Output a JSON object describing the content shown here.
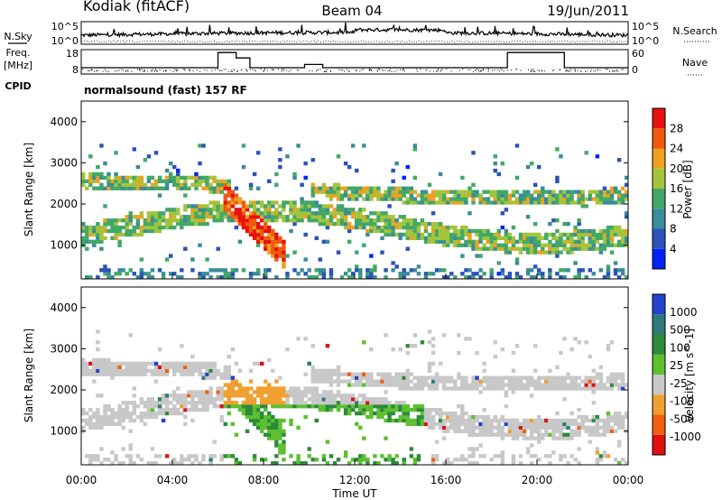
{
  "header": {
    "radar": "Kodiak (fitACF)",
    "beam": "Beam 04",
    "date": "19/Jun/2011"
  },
  "left_labels": {
    "nsky": "N.Sky",
    "freq": "Freq.",
    "freq_unit": "[MHz]",
    "cpid": "CPID"
  },
  "right_labels": {
    "nsearch": "N.Search",
    "nave": "Nave"
  },
  "cpid_text": "normalsound (fast) 157 RF",
  "chart_data": [
    {
      "type": "line",
      "name": "noise",
      "yticks_left": [
        "10^5",
        "10^0"
      ],
      "yticks_right": [
        "10^5",
        "10^0"
      ]
    },
    {
      "type": "line",
      "name": "frequency",
      "yticks_left": [
        "18",
        "8"
      ],
      "yticks_right": [
        "60",
        "0"
      ],
      "frequency_steps": [
        {
          "t0": 0.0,
          "t1": 6.0,
          "v": 10.5
        },
        {
          "t0": 6.0,
          "t1": 6.8,
          "v": 17.5
        },
        {
          "t0": 6.8,
          "t1": 7.4,
          "v": 15.0
        },
        {
          "t0": 7.4,
          "t1": 9.8,
          "v": 10.5
        },
        {
          "t0": 9.8,
          "t1": 10.6,
          "v": 12.0
        },
        {
          "t0": 10.6,
          "t1": 18.7,
          "v": 10.5
        },
        {
          "t0": 18.7,
          "t1": 21.2,
          "v": 17.5
        },
        {
          "t0": 21.2,
          "t1": 24.0,
          "v": 10.5
        }
      ]
    },
    {
      "type": "heatmap",
      "name": "power",
      "ylabel": "Slant Range [km]",
      "ylim": [
        180,
        4500
      ],
      "yticks": [
        "1000",
        "2000",
        "3000",
        "4000"
      ],
      "colorbar_label": "Power [dB]",
      "colorbar_ticks": [
        "28",
        "24",
        "20",
        "16",
        "12",
        "8",
        "4"
      ],
      "colors": [
        "#0022ff",
        "#2a52b8",
        "#3a8c9a",
        "#42a868",
        "#a4c43e",
        "#f0a020",
        "#f05a10",
        "#e81010"
      ]
    },
    {
      "type": "heatmap",
      "name": "velocity",
      "ylabel": "Slant Range [km]",
      "ylim": [
        180,
        4500
      ],
      "yticks": [
        "1000",
        "2000",
        "3000",
        "4000"
      ],
      "colorbar_label": "Velocity [m s^-1]",
      "colorbar_ticks": [
        "1000",
        "500",
        "100",
        "25",
        "-25",
        "-100",
        "-500",
        "-1000"
      ],
      "colors": [
        "#2244cc",
        "#2e7a7a",
        "#2c8a3a",
        "#5cc030",
        "#c8c8c8",
        "#f0a030",
        "#f06010",
        "#e01010"
      ]
    }
  ],
  "xaxis": {
    "label": "Time UT",
    "ticks": [
      "00:00",
      "04:00",
      "08:00",
      "12:00",
      "16:00",
      "20:00",
      "00:00"
    ]
  }
}
